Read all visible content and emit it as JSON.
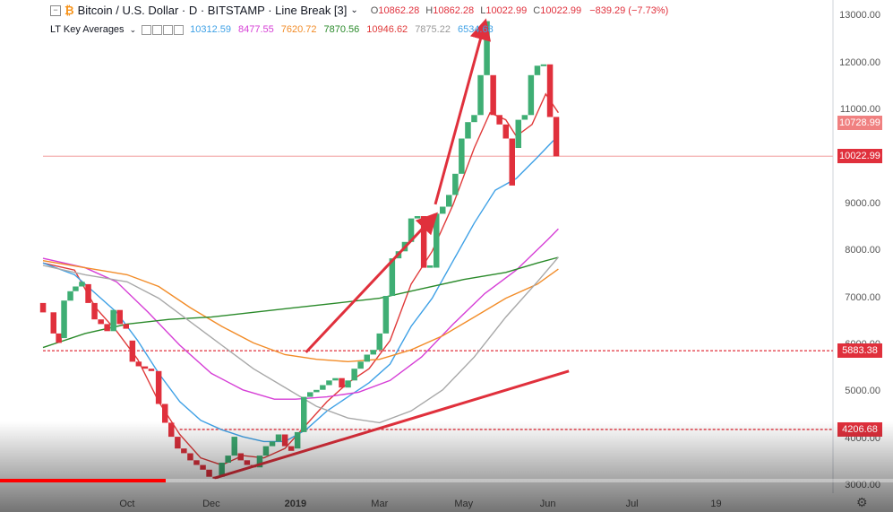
{
  "header": {
    "title": "Bitcoin / U.S. Dollar · D · BITSTAMP · Line Break [3]",
    "o_label": "O",
    "o_val": "10862.28",
    "h_label": "H",
    "h_val": "10862.28",
    "l_label": "L",
    "l_val": "10022.99",
    "c_label": "C",
    "c_val": "10022.99",
    "change": "−839.29 (−7.73%)"
  },
  "indicator": {
    "name": "LT Key Averages",
    "values": [
      {
        "v": "10312.59",
        "color": "#3fa1e6"
      },
      {
        "v": "8477.55",
        "color": "#d63fd6"
      },
      {
        "v": "7620.72",
        "color": "#f28c28"
      },
      {
        "v": "7870.56",
        "color": "#2a8a2a"
      },
      {
        "v": "10946.62",
        "color": "#e03a3a"
      },
      {
        "v": "7875.22",
        "color": "#999999"
      },
      {
        "v": "6534.68",
        "color": "#3fa1e6"
      }
    ]
  },
  "price_boxes": [
    {
      "label": "10728.99",
      "color": "#f08080",
      "y": 10728.99
    },
    {
      "label": "10022.99",
      "color": "#e0303c",
      "y": 10022.99
    },
    {
      "label": "5883.38",
      "color": "#e0303c",
      "y": 5883.38
    },
    {
      "label": "4206.68",
      "color": "#e0303c",
      "y": 4206.68
    }
  ],
  "chart_data": {
    "type": "line",
    "title": "Bitcoin / U.S. Dollar · D · BITSTAMP · Line Break [3]",
    "y_ticks": [
      "13000.00",
      "12000.00",
      "11000.00",
      "10000.00",
      "9000.00",
      "8000.00",
      "7000.00",
      "6000.00",
      "5000.00",
      "4000.00",
      "3000.00"
    ],
    "ylim": [
      2850,
      13350
    ],
    "x_ticks": [
      {
        "label": "Oct",
        "x": 8
      },
      {
        "label": "Dec",
        "x": 16
      },
      {
        "label": "2019",
        "x": 24
      },
      {
        "label": "Mar",
        "x": 32
      },
      {
        "label": "May",
        "x": 40
      },
      {
        "label": "Jun",
        "x": 48
      },
      {
        "label": "Jul",
        "x": 56
      },
      {
        "label": "19",
        "x": 64
      }
    ],
    "xlim": [
      0,
      70
    ],
    "line_break_bricks": [
      {
        "x": 0,
        "open": 6900,
        "close": 6700,
        "up": false
      },
      {
        "x": 1,
        "open": 6700,
        "close": 6250,
        "up": false
      },
      {
        "x": 1.5,
        "open": 6250,
        "close": 6050,
        "up": false
      },
      {
        "x": 2,
        "open": 6150,
        "close": 6950,
        "up": true
      },
      {
        "x": 2.6,
        "open": 6950,
        "close": 7150,
        "up": true
      },
      {
        "x": 3.1,
        "open": 7150,
        "close": 7250,
        "up": true
      },
      {
        "x": 3.7,
        "open": 7250,
        "close": 7350,
        "up": true
      },
      {
        "x": 4.3,
        "open": 7300,
        "close": 6900,
        "up": false
      },
      {
        "x": 4.9,
        "open": 6900,
        "close": 6550,
        "up": false
      },
      {
        "x": 5.5,
        "open": 6550,
        "close": 6450,
        "up": false
      },
      {
        "x": 6.1,
        "open": 6450,
        "close": 6300,
        "up": false
      },
      {
        "x": 6.7,
        "open": 6300,
        "close": 6750,
        "up": true
      },
      {
        "x": 7.3,
        "open": 6750,
        "close": 6450,
        "up": false
      },
      {
        "x": 7.9,
        "open": 6450,
        "close": 6350,
        "up": false
      },
      {
        "x": 8.5,
        "open": 6100,
        "close": 5650,
        "up": false
      },
      {
        "x": 9.1,
        "open": 5650,
        "close": 5550,
        "up": false
      },
      {
        "x": 9.7,
        "open": 5550,
        "close": 5500,
        "up": false
      },
      {
        "x": 10.3,
        "open": 5500,
        "close": 5450,
        "up": false
      },
      {
        "x": 11,
        "open": 5450,
        "close": 4750,
        "up": false
      },
      {
        "x": 11.6,
        "open": 4750,
        "close": 4350,
        "up": false
      },
      {
        "x": 12.2,
        "open": 4350,
        "close": 4050,
        "up": false
      },
      {
        "x": 12.8,
        "open": 4050,
        "close": 3800,
        "up": false
      },
      {
        "x": 13.4,
        "open": 3800,
        "close": 3700,
        "up": false
      },
      {
        "x": 14,
        "open": 3700,
        "close": 3550,
        "up": false
      },
      {
        "x": 14.6,
        "open": 3550,
        "close": 3450,
        "up": false
      },
      {
        "x": 15.2,
        "open": 3450,
        "close": 3350,
        "up": false
      },
      {
        "x": 15.8,
        "open": 3350,
        "close": 3200,
        "up": false
      },
      {
        "x": 16.4,
        "open": 3200,
        "close": 3170,
        "up": false
      },
      {
        "x": 17,
        "open": 3200,
        "close": 3500,
        "up": true
      },
      {
        "x": 17.6,
        "open": 3500,
        "close": 3650,
        "up": true
      },
      {
        "x": 18.2,
        "open": 3650,
        "close": 4050,
        "up": true
      },
      {
        "x": 18.8,
        "open": 3700,
        "close": 3550,
        "up": false
      },
      {
        "x": 19.4,
        "open": 3550,
        "close": 3450,
        "up": false
      },
      {
        "x": 20,
        "open": 3450,
        "close": 3400,
        "up": false
      },
      {
        "x": 20.6,
        "open": 3400,
        "close": 3650,
        "up": true
      },
      {
        "x": 21.2,
        "open": 3650,
        "close": 3850,
        "up": true
      },
      {
        "x": 21.8,
        "open": 3850,
        "close": 3950,
        "up": true
      },
      {
        "x": 22.4,
        "open": 3950,
        "close": 4100,
        "up": true
      },
      {
        "x": 23,
        "open": 4100,
        "close": 3850,
        "up": false
      },
      {
        "x": 23.6,
        "open": 3850,
        "close": 3750,
        "up": false
      },
      {
        "x": 24.2,
        "open": 3800,
        "close": 4150,
        "up": true
      },
      {
        "x": 24.8,
        "open": 4150,
        "close": 4900,
        "up": true
      },
      {
        "x": 25.4,
        "open": 4900,
        "close": 5000,
        "up": true
      },
      {
        "x": 26,
        "open": 5000,
        "close": 5050,
        "up": true
      },
      {
        "x": 26.6,
        "open": 5050,
        "close": 5150,
        "up": true
      },
      {
        "x": 27.2,
        "open": 5150,
        "close": 5250,
        "up": true
      },
      {
        "x": 27.8,
        "open": 5250,
        "close": 5300,
        "up": true
      },
      {
        "x": 28.4,
        "open": 5300,
        "close": 5100,
        "up": false
      },
      {
        "x": 29,
        "open": 5100,
        "close": 5250,
        "up": true
      },
      {
        "x": 29.6,
        "open": 5250,
        "close": 5500,
        "up": true
      },
      {
        "x": 30.2,
        "open": 5500,
        "close": 5650,
        "up": true
      },
      {
        "x": 30.8,
        "open": 5650,
        "close": 5800,
        "up": true
      },
      {
        "x": 31.4,
        "open": 5800,
        "close": 5900,
        "up": true
      },
      {
        "x": 32,
        "open": 5900,
        "close": 6250,
        "up": true
      },
      {
        "x": 32.6,
        "open": 6250,
        "close": 7050,
        "up": true
      },
      {
        "x": 33.2,
        "open": 7050,
        "close": 7850,
        "up": true
      },
      {
        "x": 33.8,
        "open": 7850,
        "close": 8000,
        "up": true
      },
      {
        "x": 34.4,
        "open": 8000,
        "close": 8200,
        "up": true
      },
      {
        "x": 35,
        "open": 8200,
        "close": 8700,
        "up": true
      },
      {
        "x": 35.6,
        "open": 8700,
        "close": 8750,
        "up": true
      },
      {
        "x": 36.2,
        "open": 8750,
        "close": 7650,
        "up": false
      },
      {
        "x": 36.8,
        "open": 7650,
        "close": 7700,
        "up": true
      },
      {
        "x": 37.4,
        "open": 7650,
        "close": 8800,
        "up": true
      },
      {
        "x": 38,
        "open": 8800,
        "close": 8950,
        "up": true
      },
      {
        "x": 38.6,
        "open": 8950,
        "close": 9200,
        "up": true
      },
      {
        "x": 39.2,
        "open": 9200,
        "close": 9650,
        "up": true
      },
      {
        "x": 39.8,
        "open": 9650,
        "close": 10400,
        "up": true
      },
      {
        "x": 40.4,
        "open": 10400,
        "close": 10750,
        "up": true
      },
      {
        "x": 41,
        "open": 10750,
        "close": 10900,
        "up": true
      },
      {
        "x": 41.6,
        "open": 10900,
        "close": 11750,
        "up": true
      },
      {
        "x": 42.2,
        "open": 11750,
        "close": 12900,
        "up": true
      },
      {
        "x": 42.8,
        "open": 11750,
        "close": 10900,
        "up": false
      },
      {
        "x": 43.4,
        "open": 10900,
        "close": 10700,
        "up": false
      },
      {
        "x": 44,
        "open": 10700,
        "close": 10400,
        "up": false
      },
      {
        "x": 44.6,
        "open": 10400,
        "close": 9400,
        "up": false
      },
      {
        "x": 45.2,
        "open": 10200,
        "close": 10800,
        "up": true
      },
      {
        "x": 45.8,
        "open": 10800,
        "close": 10900,
        "up": true
      },
      {
        "x": 46.4,
        "open": 10900,
        "close": 11750,
        "up": true
      },
      {
        "x": 47,
        "open": 11750,
        "close": 11950,
        "up": true
      },
      {
        "x": 47.6,
        "open": 11950,
        "close": 11980,
        "up": true
      },
      {
        "x": 48.2,
        "open": 11980,
        "close": 10860,
        "up": false
      },
      {
        "x": 48.8,
        "open": 10860,
        "close": 10022,
        "up": false
      }
    ],
    "series": [
      {
        "color": "#e03a3a",
        "points": [
          [
            0,
            7750
          ],
          [
            3,
            7600
          ],
          [
            5,
            6800
          ],
          [
            7,
            6300
          ],
          [
            9,
            5700
          ],
          [
            11,
            4800
          ],
          [
            13,
            4100
          ],
          [
            15,
            3600
          ],
          [
            17,
            3450
          ],
          [
            19,
            3650
          ],
          [
            21,
            3600
          ],
          [
            23,
            3800
          ],
          [
            25,
            4300
          ],
          [
            27,
            4800
          ],
          [
            29,
            5200
          ],
          [
            31,
            5500
          ],
          [
            33,
            6100
          ],
          [
            35,
            7300
          ],
          [
            37,
            8000
          ],
          [
            39,
            9000
          ],
          [
            41,
            10200
          ],
          [
            42.5,
            10950
          ],
          [
            44,
            10800
          ],
          [
            45,
            10450
          ],
          [
            46.5,
            10700
          ],
          [
            47.8,
            11350
          ],
          [
            49,
            10950
          ]
        ]
      },
      {
        "color": "#3fa1e6",
        "points": [
          [
            0,
            7750
          ],
          [
            3,
            7500
          ],
          [
            5,
            7100
          ],
          [
            7,
            6700
          ],
          [
            9,
            6100
          ],
          [
            11,
            5400
          ],
          [
            13,
            4800
          ],
          [
            15,
            4400
          ],
          [
            17,
            4200
          ],
          [
            19,
            4050
          ],
          [
            21,
            3950
          ],
          [
            23,
            3950
          ],
          [
            25,
            4200
          ],
          [
            27,
            4600
          ],
          [
            29,
            4900
          ],
          [
            31,
            5200
          ],
          [
            33,
            5600
          ],
          [
            35,
            6400
          ],
          [
            37,
            7000
          ],
          [
            39,
            7800
          ],
          [
            41,
            8600
          ],
          [
            43,
            9300
          ],
          [
            45,
            9550
          ],
          [
            47,
            10000
          ],
          [
            48.5,
            10350
          ],
          [
            49,
            10312
          ]
        ]
      },
      {
        "color": "#d63fd6",
        "points": [
          [
            0,
            7850
          ],
          [
            4,
            7650
          ],
          [
            7,
            7350
          ],
          [
            10,
            6700
          ],
          [
            13,
            6000
          ],
          [
            16,
            5400
          ],
          [
            19,
            5050
          ],
          [
            22,
            4850
          ],
          [
            24,
            4850
          ],
          [
            27,
            4900
          ],
          [
            30,
            5000
          ],
          [
            33,
            5250
          ],
          [
            36,
            5750
          ],
          [
            39,
            6450
          ],
          [
            42,
            7100
          ],
          [
            45,
            7600
          ],
          [
            48,
            8250
          ],
          [
            49,
            8477
          ]
        ]
      },
      {
        "color": "#f28c28",
        "points": [
          [
            0,
            7800
          ],
          [
            4,
            7650
          ],
          [
            8,
            7500
          ],
          [
            11,
            7250
          ],
          [
            14,
            6800
          ],
          [
            17,
            6400
          ],
          [
            20,
            6050
          ],
          [
            23,
            5800
          ],
          [
            26,
            5700
          ],
          [
            29,
            5650
          ],
          [
            32,
            5700
          ],
          [
            35,
            5900
          ],
          [
            38,
            6200
          ],
          [
            41,
            6600
          ],
          [
            44,
            7000
          ],
          [
            47,
            7300
          ],
          [
            49,
            7620
          ]
        ]
      },
      {
        "color": "#2a8a2a",
        "points": [
          [
            0,
            5950
          ],
          [
            4,
            6250
          ],
          [
            8,
            6450
          ],
          [
            12,
            6550
          ],
          [
            16,
            6600
          ],
          [
            20,
            6700
          ],
          [
            24,
            6800
          ],
          [
            28,
            6900
          ],
          [
            32,
            7000
          ],
          [
            36,
            7200
          ],
          [
            40,
            7400
          ],
          [
            44,
            7550
          ],
          [
            47,
            7750
          ],
          [
            49,
            7870
          ]
        ]
      },
      {
        "color": "#a8a8a8",
        "points": [
          [
            0,
            7700
          ],
          [
            4,
            7500
          ],
          [
            8,
            7350
          ],
          [
            11,
            7000
          ],
          [
            14,
            6500
          ],
          [
            17,
            6000
          ],
          [
            20,
            5500
          ],
          [
            23,
            5100
          ],
          [
            26,
            4700
          ],
          [
            29,
            4450
          ],
          [
            32,
            4350
          ],
          [
            35,
            4600
          ],
          [
            38,
            5050
          ],
          [
            41,
            5750
          ],
          [
            44,
            6600
          ],
          [
            47,
            7350
          ],
          [
            49,
            7875
          ]
        ]
      }
    ],
    "hlines": [
      {
        "y": 10022.99,
        "color": "#f5b0b0",
        "style": "solid",
        "x0": 0,
        "x1": 50
      },
      {
        "y": 5883.38,
        "color": "#e0303c",
        "style": "dashed",
        "x0": 0,
        "x1": 50
      },
      {
        "y": 4206.68,
        "color": "#e0303c",
        "style": "dashed",
        "x0": 13,
        "x1": 50
      }
    ],
    "trend_lines": [
      {
        "x0": 16.3,
        "y0": 3170,
        "x1": 50,
        "y1": 5450,
        "color": "#e0303c"
      },
      {
        "x0": 25,
        "y0": 5850,
        "x1": 37.2,
        "y1": 8750,
        "color": "#e0303c",
        "arrow": true
      },
      {
        "x0": 37.3,
        "y0": 9000,
        "x1": 42,
        "y1": 12850,
        "color": "#e0303c",
        "arrow": true
      }
    ]
  },
  "player": {
    "progress_fraction": 0.186
  }
}
